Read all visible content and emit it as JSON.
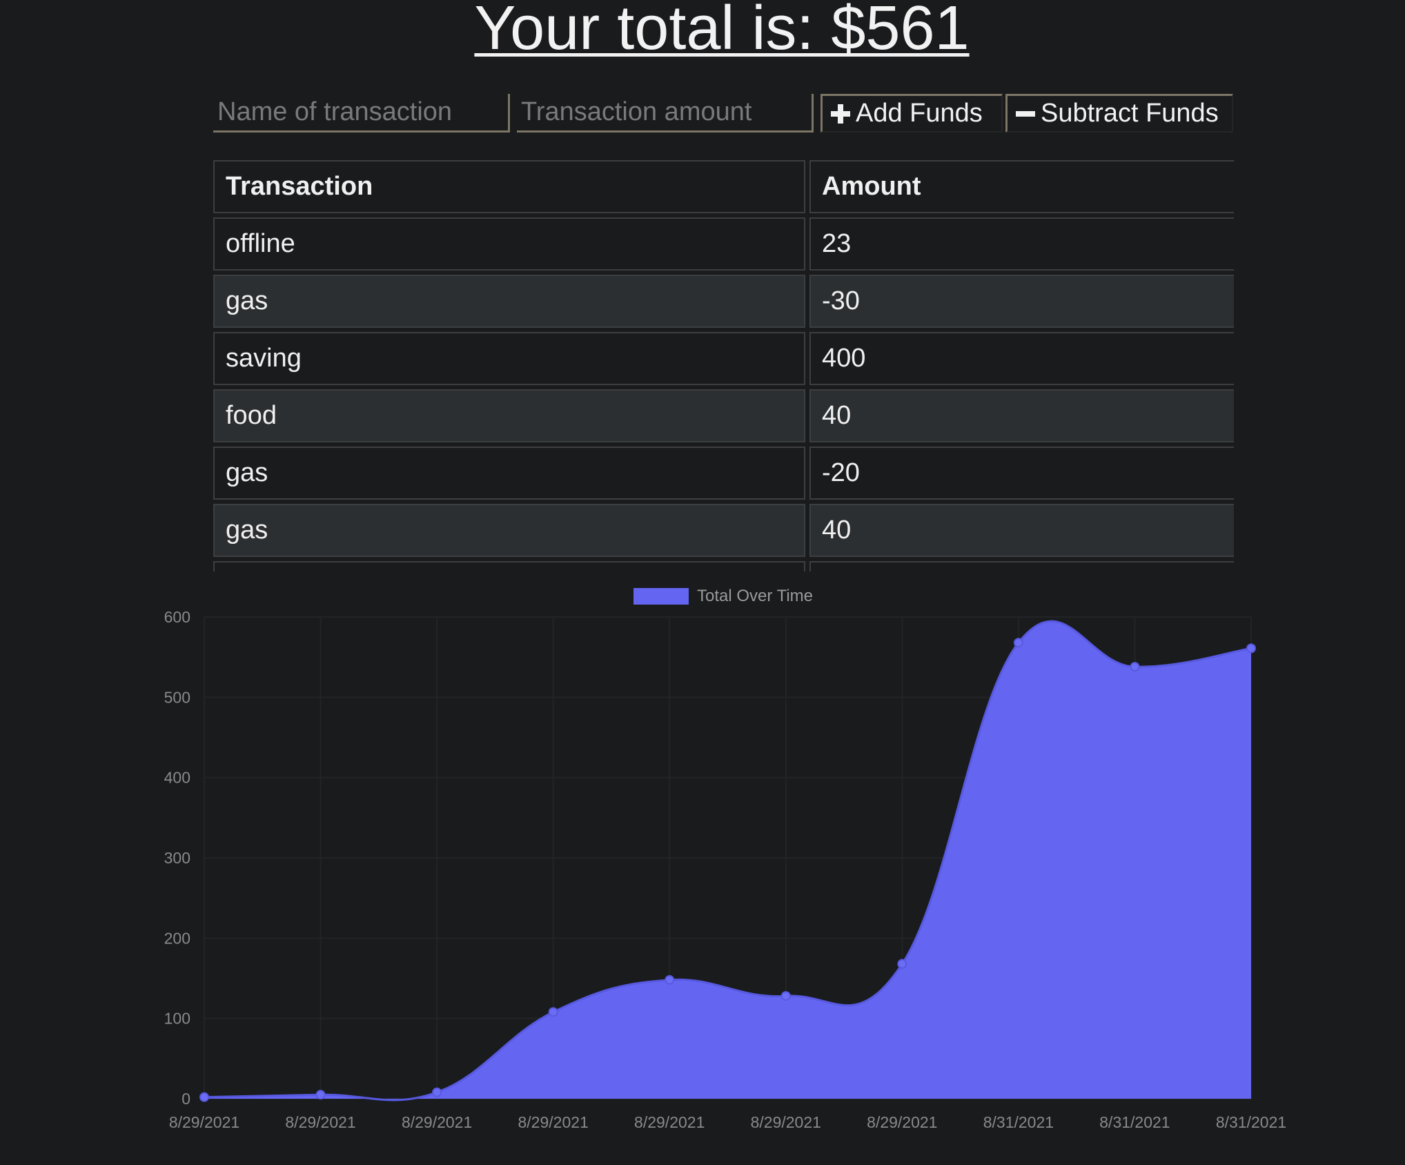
{
  "header": {
    "title": "Your total is: $561"
  },
  "form": {
    "name_placeholder": "Name of transaction",
    "amount_placeholder": "Transaction amount",
    "add_label": "Add Funds",
    "subtract_label": "Subtract Funds",
    "add_icon": "plus-icon",
    "subtract_icon": "minus-icon"
  },
  "table": {
    "headers": [
      "Transaction",
      "Amount"
    ],
    "rows": [
      {
        "name": "offline",
        "amount": "23"
      },
      {
        "name": "gas",
        "amount": "-30"
      },
      {
        "name": "saving",
        "amount": "400"
      },
      {
        "name": "food",
        "amount": "40"
      },
      {
        "name": "gas",
        "amount": "-20"
      },
      {
        "name": "gas",
        "amount": "40"
      },
      {
        "name": "",
        "amount": ""
      }
    ]
  },
  "chart_data": {
    "type": "area",
    "legend": "Total Over Time",
    "legend_position": "top-center",
    "fill_color": "#6466f1",
    "x": [
      "8/29/2021",
      "8/29/2021",
      "8/29/2021",
      "8/29/2021",
      "8/29/2021",
      "8/29/2021",
      "8/29/2021",
      "8/31/2021",
      "8/31/2021",
      "8/31/2021"
    ],
    "series": [
      {
        "name": "Total Over Time",
        "values": [
          2,
          5,
          8,
          108,
          148,
          128,
          168,
          568,
          538,
          561
        ]
      }
    ],
    "ylim": [
      0,
      600
    ],
    "yticks": [
      0,
      100,
      200,
      300,
      400,
      500,
      600
    ],
    "grid": true
  }
}
